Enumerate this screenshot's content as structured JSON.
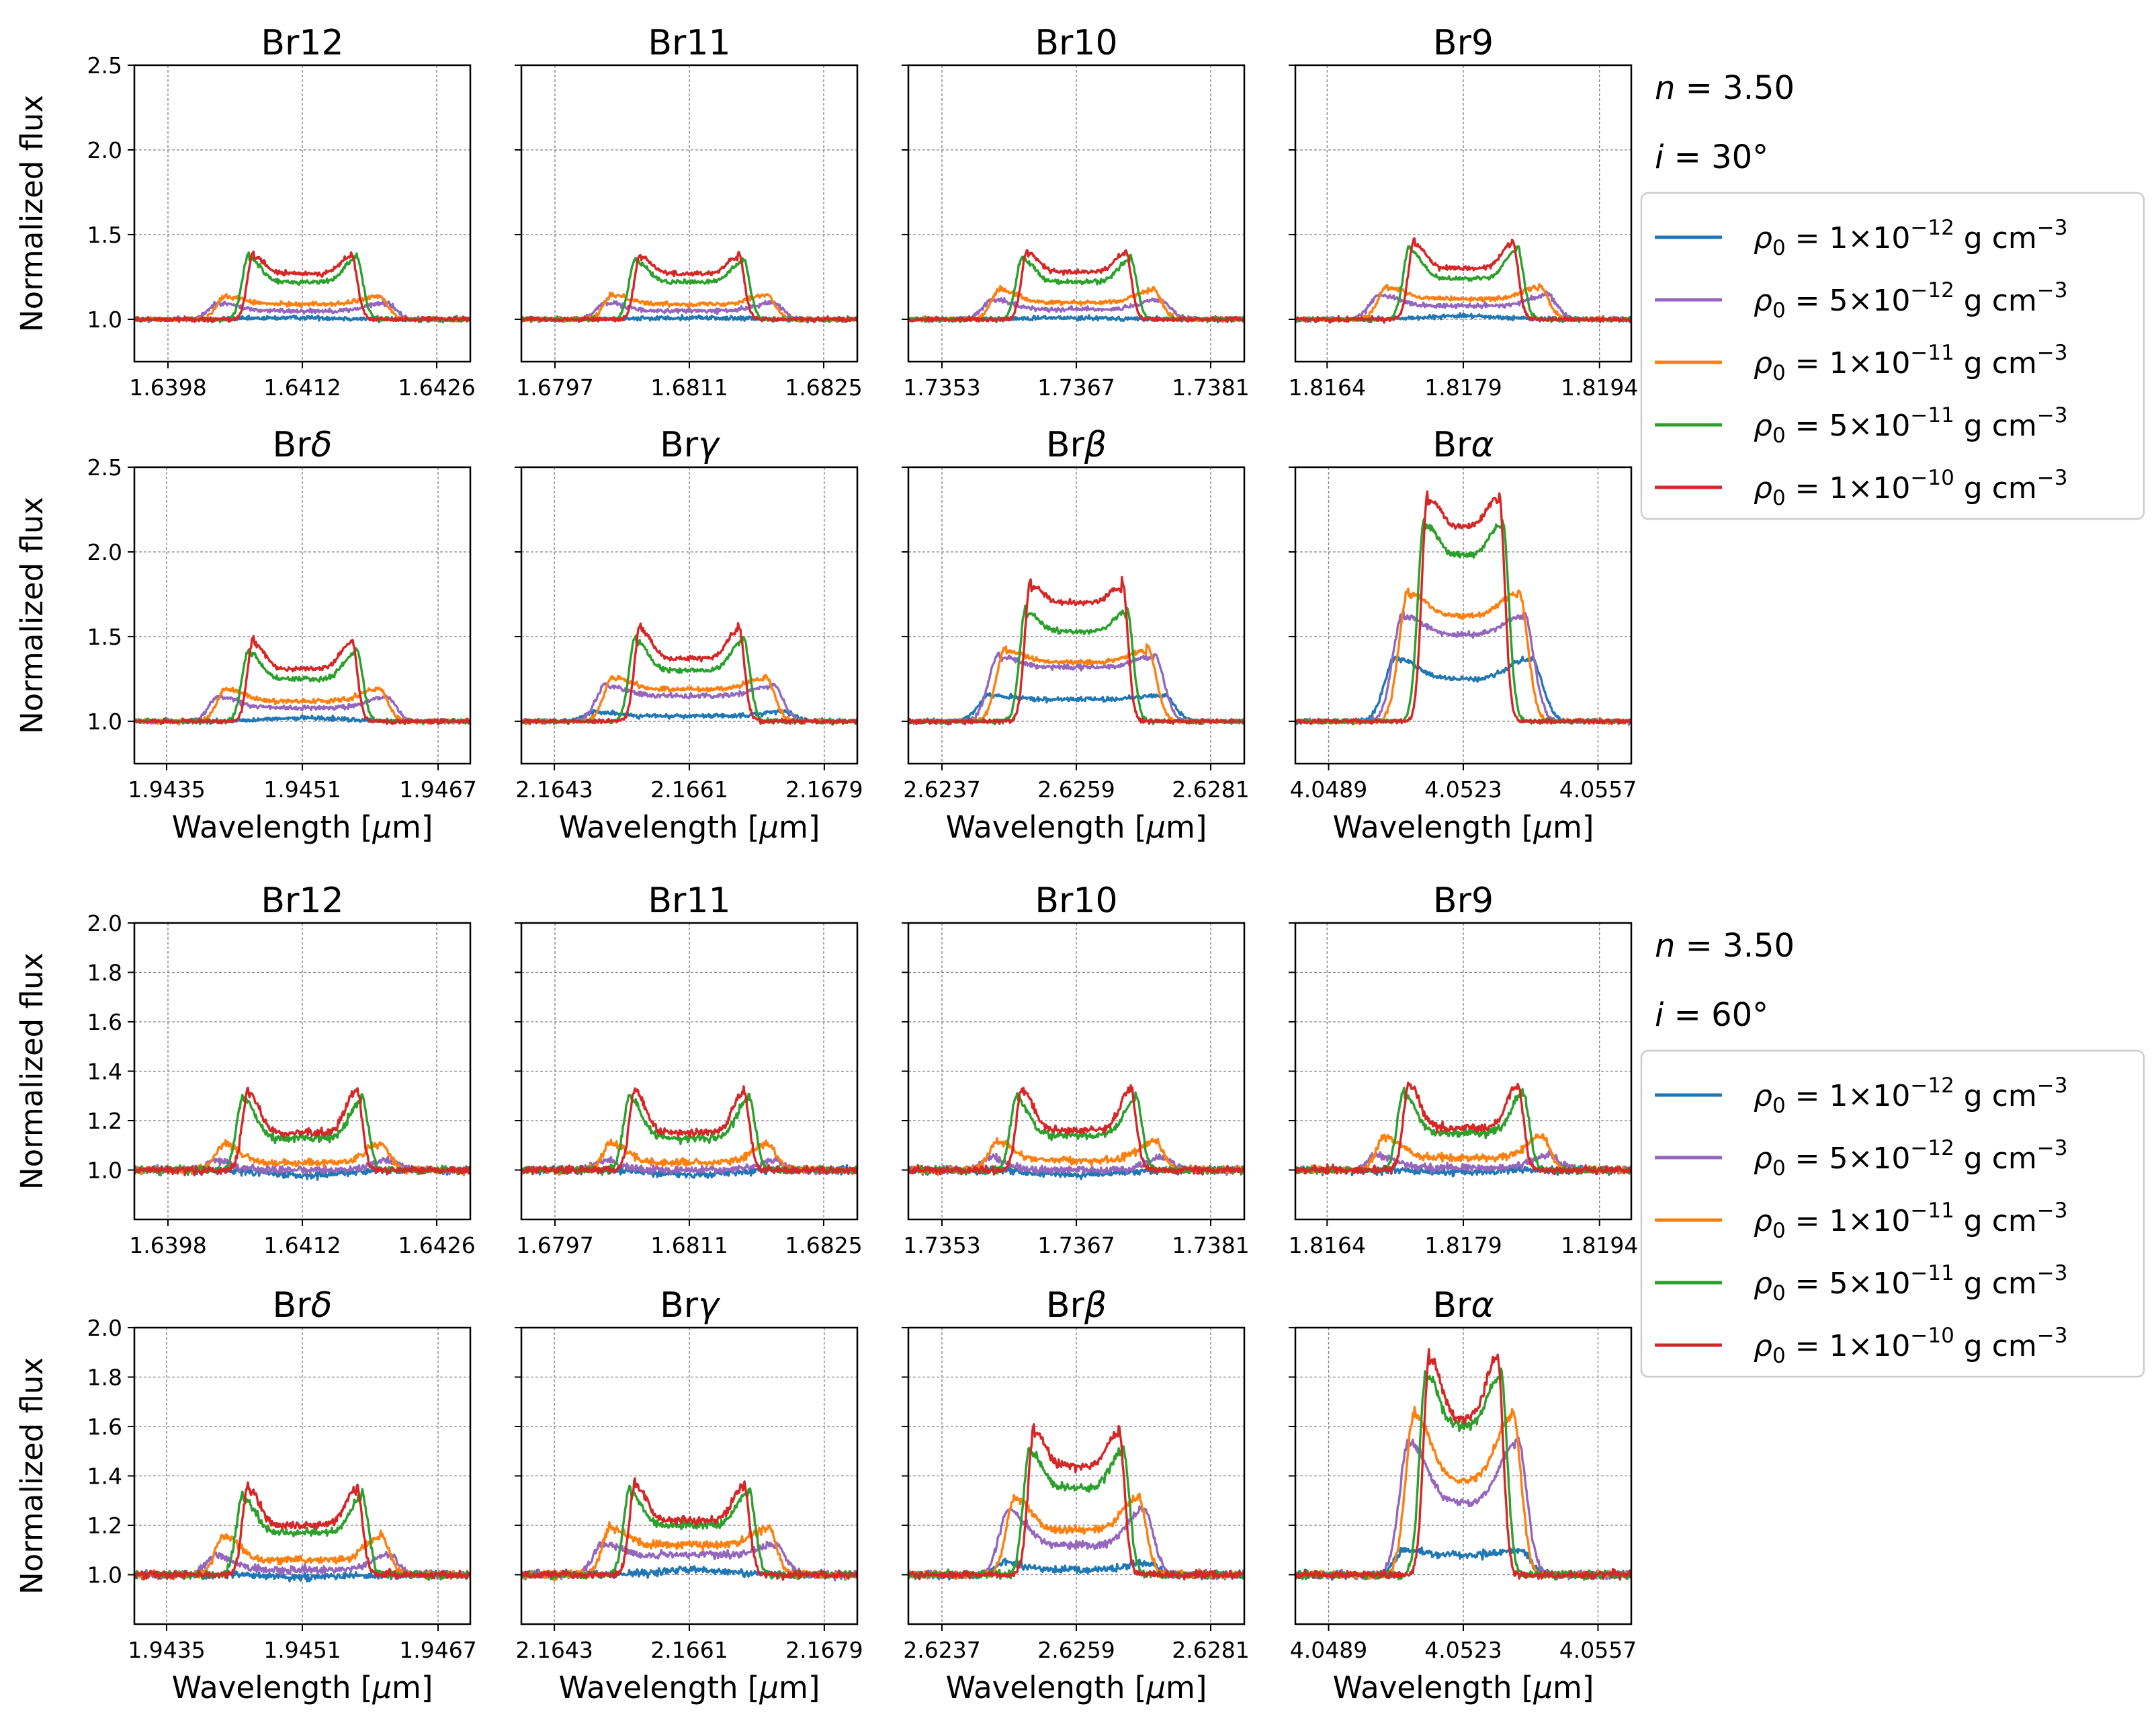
{
  "chart_data": {
    "type": "line",
    "series_names": [
      "ρ0 = 1×10^-12 g cm^-3",
      "ρ0 = 5×10^-12 g cm^-3",
      "ρ0 = 1×10^-11 g cm^-3",
      "ρ0 = 5×10^-11 g cm^-3",
      "ρ0 = 1×10^-10 g cm^-3"
    ],
    "series_colors": [
      "#1f77b4",
      "#9467bd",
      "#ff7f0e",
      "#2ca02c",
      "#d62728"
    ],
    "legend": [
      {
        "sym": "ρ",
        "sub": "0",
        "mid": " = 1×10",
        "exp": "−12",
        "unit": " g cm",
        "uexp": "−3"
      },
      {
        "sym": "ρ",
        "sub": "0",
        "mid": " = 5×10",
        "exp": "−12",
        "unit": " g cm",
        "uexp": "−3"
      },
      {
        "sym": "ρ",
        "sub": "0",
        "mid": " = 1×10",
        "exp": "−11",
        "unit": " g cm",
        "uexp": "−3"
      },
      {
        "sym": "ρ",
        "sub": "0",
        "mid": " = 5×10",
        "exp": "−11",
        "unit": " g cm",
        "uexp": "−3"
      },
      {
        "sym": "ρ",
        "sub": "0",
        "mid": " = 1×10",
        "exp": "−10",
        "unit": " g cm",
        "uexp": "−3"
      }
    ],
    "ylabel": "Normalized flux",
    "xlabel_prefix": "Wavelength [",
    "xlabel_mu": "μ",
    "xlabel_suffix": "m]",
    "lines": [
      {
        "title": "Br12",
        "title_greek": "",
        "center": 1.6412,
        "ticks": [
          1.6398,
          1.6412,
          1.6426
        ],
        "tick_labels": [
          "1.6398",
          "1.6412",
          "1.6426"
        ],
        "xlim": [
          1.63945,
          1.64295
        ]
      },
      {
        "title": "Br11",
        "title_greek": "",
        "center": 1.6811,
        "ticks": [
          1.6797,
          1.6811,
          1.6825
        ],
        "tick_labels": [
          "1.6797",
          "1.6811",
          "1.6825"
        ],
        "xlim": [
          1.67935,
          1.68285
        ]
      },
      {
        "title": "Br10",
        "title_greek": "",
        "center": 1.7367,
        "ticks": [
          1.7353,
          1.7367,
          1.7381
        ],
        "tick_labels": [
          "1.7353",
          "1.7367",
          "1.7381"
        ],
        "xlim": [
          1.73495,
          1.73845
        ]
      },
      {
        "title": "Br9",
        "title_greek": "",
        "center": 1.8179,
        "ticks": [
          1.8164,
          1.8179,
          1.8194
        ],
        "tick_labels": [
          "1.8164",
          "1.8179",
          "1.8194"
        ],
        "xlim": [
          1.81605,
          1.81975
        ]
      },
      {
        "title": "Br",
        "title_greek": "δ",
        "center": 1.9451,
        "ticks": [
          1.9435,
          1.9451,
          1.9467
        ],
        "tick_labels": [
          "1.9435",
          "1.9451",
          "1.9467"
        ],
        "xlim": [
          1.94312,
          1.94708
        ]
      },
      {
        "title": "Br",
        "title_greek": "γ",
        "center": 2.1661,
        "ticks": [
          2.1643,
          2.1661,
          2.1679
        ],
        "tick_labels": [
          "2.1643",
          "2.1661",
          "2.1679"
        ],
        "xlim": [
          2.16386,
          2.16834
        ]
      },
      {
        "title": "Br",
        "title_greek": "β",
        "center": 2.6259,
        "ticks": [
          2.6237,
          2.6259,
          2.6281
        ],
        "tick_labels": [
          "2.6237",
          "2.6259",
          "2.6281"
        ],
        "xlim": [
          2.62315,
          2.62865
        ]
      },
      {
        "title": "Br",
        "title_greek": "α",
        "center": 4.0523,
        "ticks": [
          4.0489,
          4.0523,
          4.0557
        ],
        "tick_labels": [
          "4.0489",
          "4.0523",
          "4.0557"
        ],
        "xlim": [
          4.04806,
          4.05654
        ]
      }
    ],
    "blocks": [
      {
        "n_label": "n = 3.50",
        "i_label": "i = 30°",
        "n_sym": "n",
        "n_val": " = 3.50",
        "i_sym": "i",
        "i_val": " = 30°",
        "ylim": [
          0.75,
          2.5
        ],
        "yticks": [
          1.0,
          1.5,
          2.0,
          2.5
        ],
        "ytick_labels": [
          "1.0",
          "1.5",
          "2.0",
          "2.5"
        ],
        "peak_heights": [
          [
            [
              0.01,
              0.1,
              0.14,
              0.38,
              0.39
            ],
            [
              0.01,
              0.1,
              0.15,
              0.36,
              0.39
            ],
            [
              0.01,
              0.12,
              0.18,
              0.37,
              0.41
            ],
            [
              0.02,
              0.15,
              0.2,
              0.43,
              0.47
            ],
            [
              0.02,
              0.15,
              0.2,
              0.43,
              0.49
            ],
            [
              0.06,
              0.22,
              0.27,
              0.5,
              0.57
            ],
            [
              0.16,
              0.4,
              0.44,
              0.68,
              0.84
            ],
            [
              0.38,
              0.64,
              0.78,
              1.2,
              1.36
            ]
          ]
        ],
        "dip_heights": [
          [
            [
              -0.02,
              0.05,
              0.09,
              0.22,
              0.27
            ],
            [
              -0.02,
              0.05,
              0.09,
              0.22,
              0.27
            ],
            [
              -0.03,
              0.06,
              0.1,
              0.22,
              0.28
            ],
            [
              0.0,
              0.08,
              0.12,
              0.24,
              0.3
            ],
            [
              0.0,
              0.08,
              0.12,
              0.25,
              0.31
            ],
            [
              0.03,
              0.15,
              0.19,
              0.3,
              0.37
            ],
            [
              0.13,
              0.32,
              0.35,
              0.53,
              0.7
            ],
            [
              0.25,
              0.51,
              0.62,
              0.98,
              1.15
            ]
          ]
        ]
      },
      {
        "n_label": "n = 3.50",
        "i_label": "i = 60°",
        "n_sym": "n",
        "n_val": " = 3.50",
        "i_sym": "i",
        "i_val": " = 60°",
        "ylim": [
          0.8,
          2.0
        ],
        "yticks": [
          1.0,
          1.2,
          1.4,
          1.6,
          1.8,
          2.0
        ],
        "ytick_labels": [
          "1.0",
          "1.2",
          "1.4",
          "1.6",
          "1.8",
          "2.0"
        ],
        "peak_heights": [
          [
            [
              -0.02,
              0.04,
              0.11,
              0.3,
              0.33
            ],
            [
              -0.02,
              0.04,
              0.11,
              0.3,
              0.33
            ],
            [
              -0.02,
              0.05,
              0.12,
              0.3,
              0.34
            ],
            [
              -0.01,
              0.06,
              0.14,
              0.32,
              0.36
            ],
            [
              -0.01,
              0.08,
              0.16,
              0.33,
              0.37
            ],
            [
              0.02,
              0.13,
              0.2,
              0.35,
              0.38
            ],
            [
              0.05,
              0.27,
              0.32,
              0.52,
              0.6
            ],
            [
              0.1,
              0.55,
              0.66,
              0.83,
              0.9
            ]
          ]
        ],
        "dip_heights": [
          [
            [
              -0.04,
              0.0,
              0.03,
              0.13,
              0.15
            ],
            [
              -0.04,
              0.0,
              0.03,
              0.13,
              0.15
            ],
            [
              -0.04,
              0.0,
              0.04,
              0.14,
              0.16
            ],
            [
              -0.04,
              0.01,
              0.05,
              0.15,
              0.17
            ],
            [
              -0.04,
              0.02,
              0.06,
              0.17,
              0.2
            ],
            [
              0.0,
              0.08,
              0.12,
              0.2,
              0.22
            ],
            [
              0.02,
              0.12,
              0.18,
              0.35,
              0.44
            ],
            [
              0.08,
              0.29,
              0.38,
              0.6,
              0.63
            ]
          ]
        ]
      }
    ],
    "peak_sep": [
      [
        0.29,
        0.29,
        0.29,
        0.29,
        0.29,
        0.29,
        0.27,
        0.21
      ],
      [
        0.32,
        0.32,
        0.32,
        0.32,
        0.32,
        0.32,
        0.25,
        0.2
      ]
    ],
    "width_factor": [
      [
        1.9,
        1.7,
        1.55,
        1.1,
        1.0
      ],
      [
        1.7,
        1.6,
        1.45,
        1.1,
        1.0
      ]
    ]
  }
}
